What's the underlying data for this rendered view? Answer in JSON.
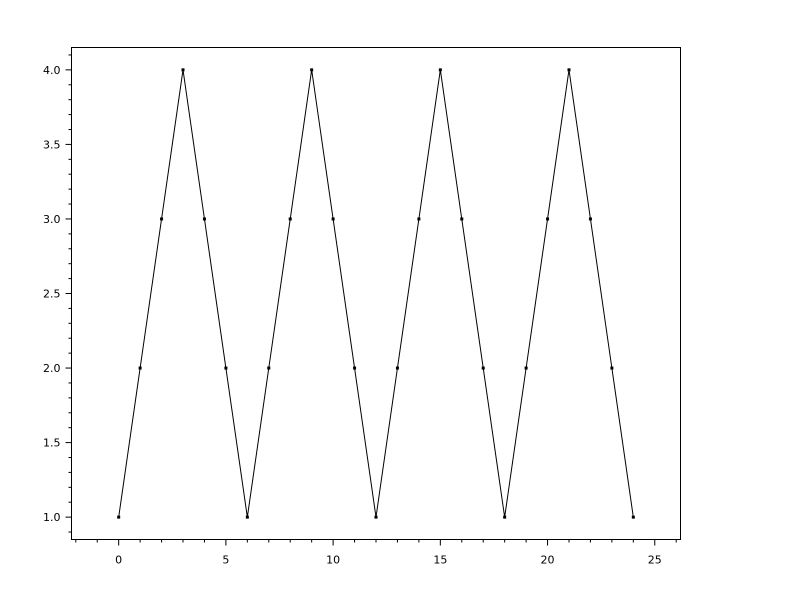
{
  "chart_data": {
    "type": "line",
    "title": "",
    "xlabel": "",
    "ylabel": "",
    "xlim": [
      -2.2,
      26.2
    ],
    "ylim": [
      0.85,
      4.15
    ],
    "x_ticks": [
      0,
      5,
      10,
      15,
      20,
      25
    ],
    "x_tick_labels": [
      "0",
      "5",
      "10",
      "15",
      "20",
      "25"
    ],
    "x_minor_step": 1,
    "y_ticks": [
      1.0,
      1.5,
      2.0,
      2.5,
      3.0,
      3.5,
      4.0
    ],
    "y_tick_labels": [
      "1.0",
      "1.5",
      "2.0",
      "2.5",
      "3.0",
      "3.5",
      "4.0"
    ],
    "y_minor_step": 0.1,
    "grid": false,
    "legend": "none",
    "line_color": "#000000",
    "series": [
      {
        "x": [
          0,
          1,
          2,
          3,
          4,
          5,
          6,
          7,
          8,
          9,
          10,
          11,
          12,
          13,
          14,
          15,
          16,
          17,
          18,
          19,
          20,
          21,
          22,
          23,
          24
        ],
        "y": [
          1,
          2,
          3,
          4,
          3,
          2,
          1,
          2,
          3,
          4,
          3,
          2,
          1,
          2,
          3,
          4,
          3,
          2,
          1,
          2,
          3,
          4,
          3,
          2,
          1
        ]
      }
    ]
  }
}
